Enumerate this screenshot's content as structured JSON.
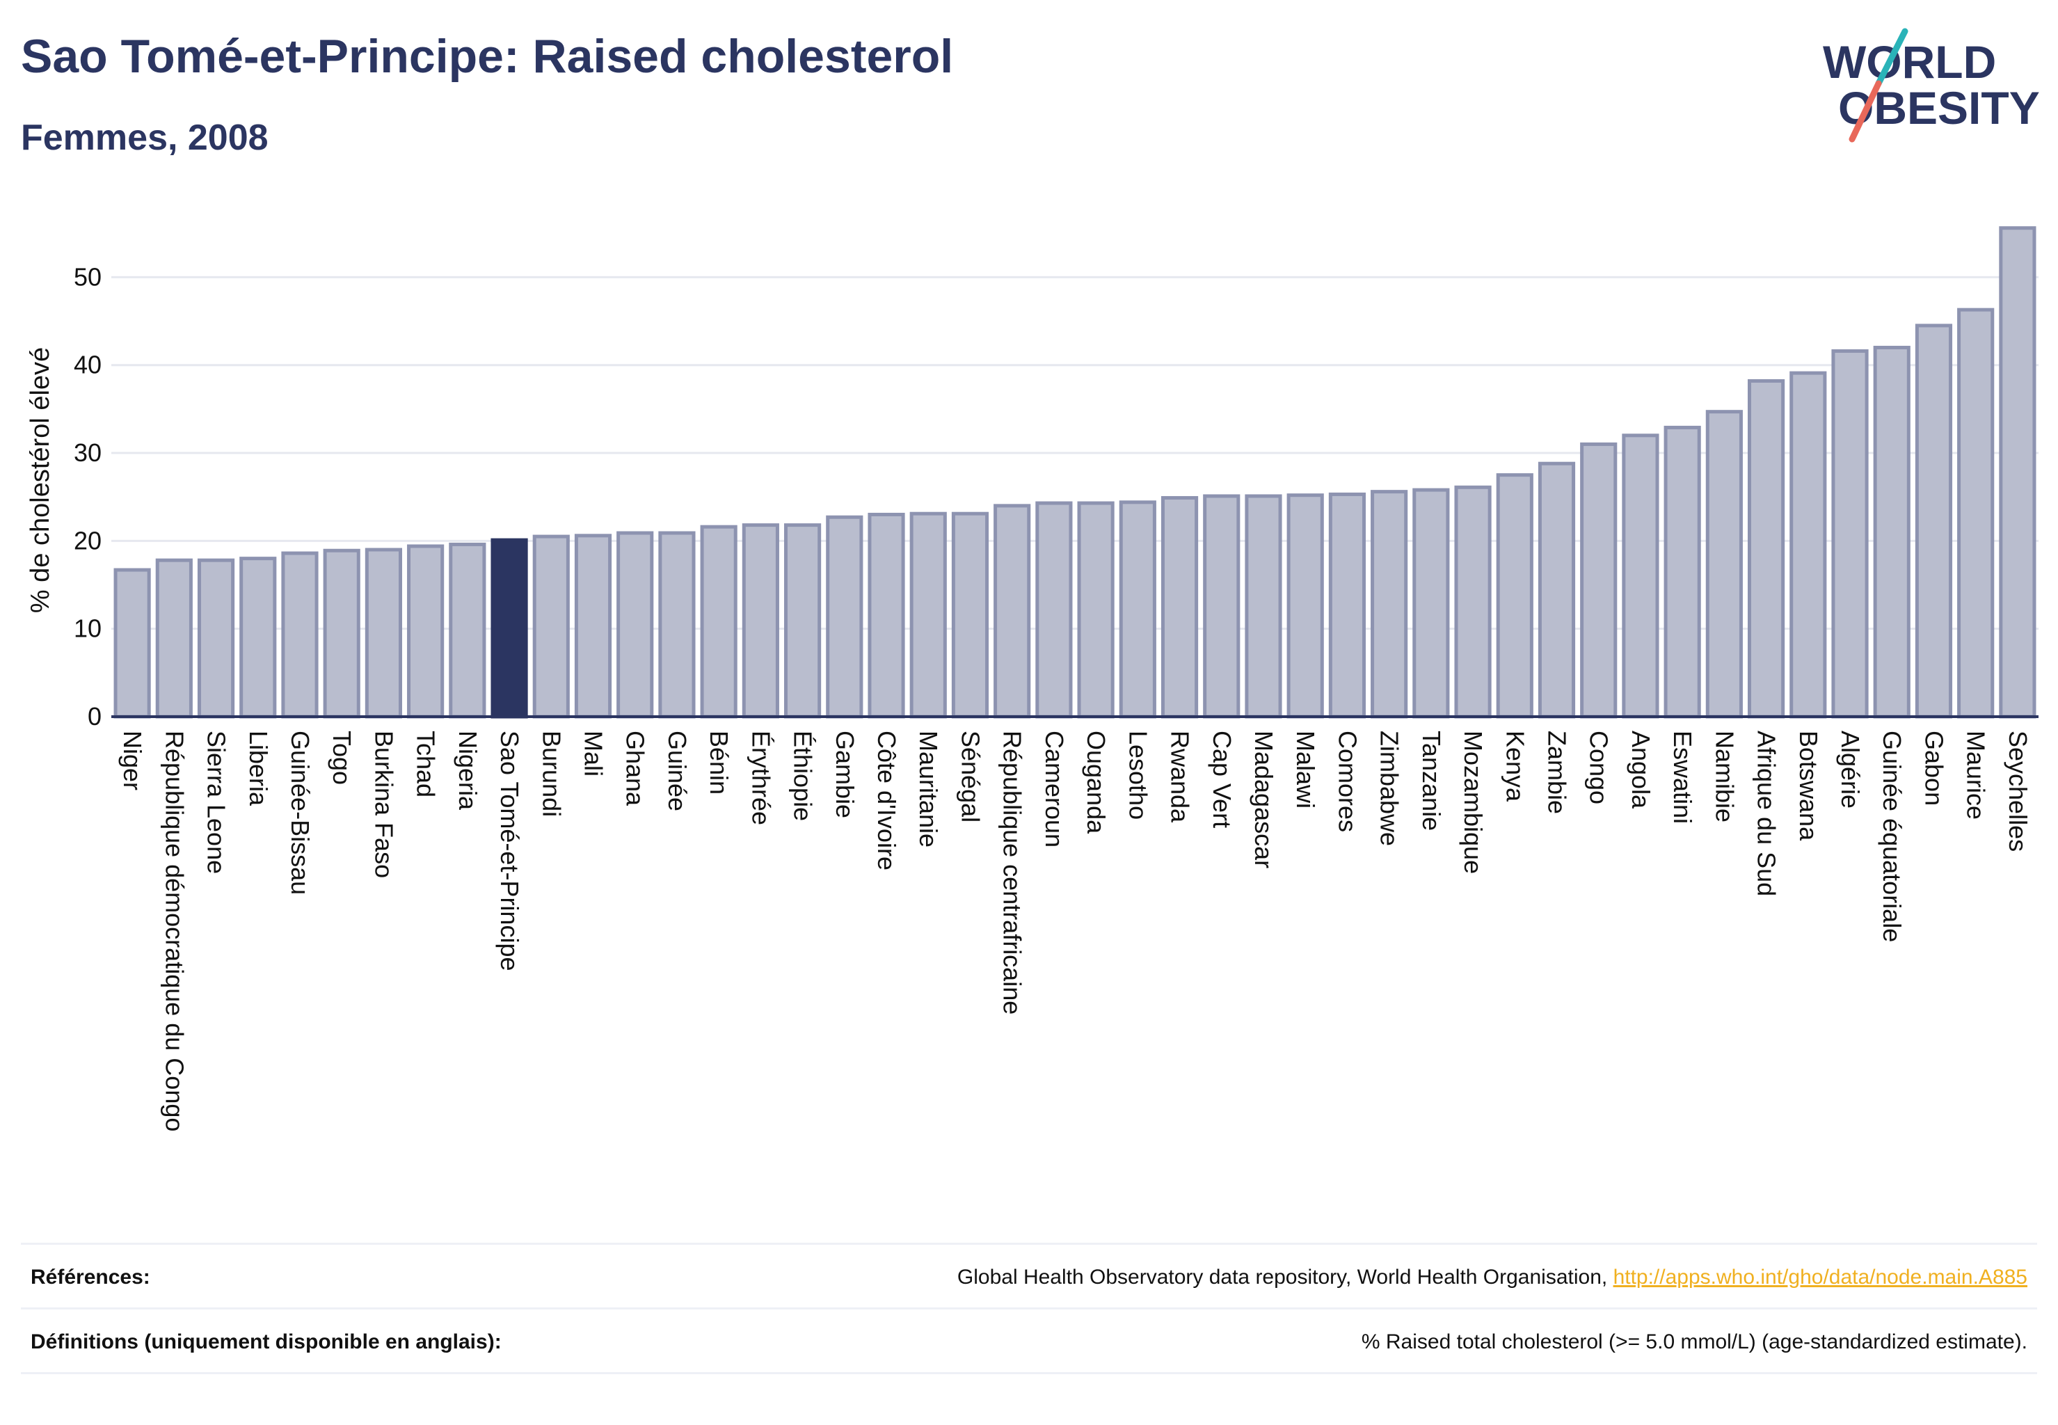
{
  "header": {
    "title": "Sao Tomé-et-Principe: Raised cholesterol",
    "subtitle": "Femmes, 2008"
  },
  "logo": {
    "line1": "WORLD",
    "line2": "OBESITY",
    "colors": {
      "text": "#2b3561",
      "slash_top": "#2ab3b8",
      "slash_bottom": "#e8685a"
    }
  },
  "colors": {
    "bar": "#b9bdce",
    "bar_edge": "#8d93b0",
    "highlight": "#2b3561",
    "grid": "#e6e8ef",
    "axis": "#2b3561"
  },
  "chart_data": {
    "type": "bar",
    "ylabel": "% de cholestérol élevé",
    "ylim": [
      0,
      57
    ],
    "yticks": [
      0,
      10,
      20,
      30,
      40,
      50
    ],
    "grid": true,
    "highlight": "Sao Tomé-et-Principe",
    "categories": [
      "Niger",
      "République démocratique du Congo",
      "Sierra Leone",
      "Liberia",
      "Guinée-Bissau",
      "Togo",
      "Burkina Faso",
      "Tchad",
      "Nigeria",
      "Sao Tomé-et-Principe",
      "Burundi",
      "Mali",
      "Ghana",
      "Guinée",
      "Bénin",
      "Érythrée",
      "Éthiopie",
      "Gambie",
      "Côte d'Ivoire",
      "Mauritanie",
      "Sénégal",
      "République centrafricaine",
      "Cameroun",
      "Ouganda",
      "Lesotho",
      "Rwanda",
      "Cap Vert",
      "Madagascar",
      "Malawi",
      "Comores",
      "Zimbabwe",
      "Tanzanie",
      "Mozambique",
      "Kenya",
      "Zambie",
      "Congo",
      "Angola",
      "Eswatini",
      "Namibie",
      "Afrique du Sud",
      "Botswana",
      "Algérie",
      "Guinée équatoriale",
      "Gabon",
      "Maurice",
      "Seychelles"
    ],
    "values": [
      16.7,
      17.8,
      17.8,
      18.0,
      18.6,
      18.9,
      19.0,
      19.4,
      19.6,
      20.1,
      20.5,
      20.6,
      20.9,
      20.9,
      21.6,
      21.8,
      21.8,
      22.7,
      23.0,
      23.1,
      23.1,
      24.0,
      24.3,
      24.3,
      24.4,
      24.9,
      25.1,
      25.1,
      25.2,
      25.3,
      25.6,
      25.8,
      26.1,
      27.5,
      28.8,
      31.0,
      32.0,
      32.9,
      34.7,
      38.2,
      39.1,
      41.6,
      42.0,
      44.5,
      46.3,
      55.6
    ]
  },
  "references": [
    {
      "label": "Références:",
      "text": "Global Health Observatory data repository, World Health Organisation, ",
      "link": "http://apps.who.int/gho/data/node.main.A885"
    },
    {
      "label": "Définitions (uniquement disponible en anglais):",
      "text": "% Raised total cholesterol (>= 5.0 mmol/L) (age-standardized estimate).",
      "link": ""
    }
  ]
}
